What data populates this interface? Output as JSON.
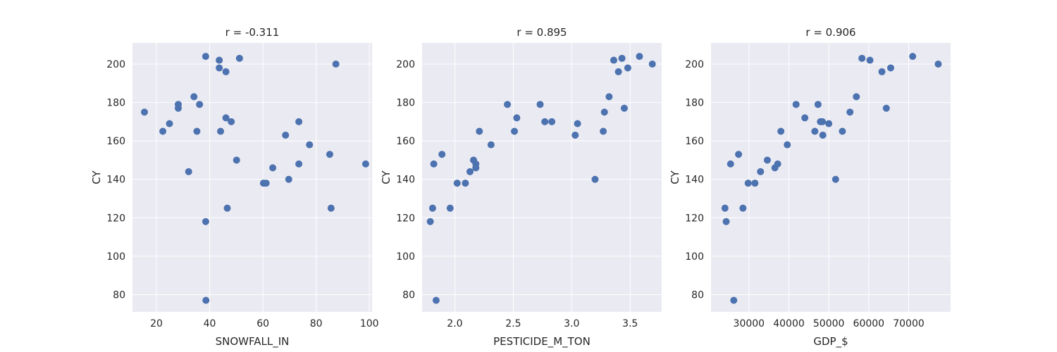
{
  "chart_data": [
    {
      "type": "scatter",
      "title": "r = -0.311",
      "xlabel": "SNOWFALL_IN",
      "ylabel": "CY",
      "xlim": [
        11,
        101
      ],
      "ylim": [
        71,
        211
      ],
      "xticks": [
        20,
        40,
        60,
        80,
        100
      ],
      "yticks": [
        80,
        100,
        120,
        140,
        160,
        180,
        200
      ],
      "grid": true,
      "color": "#4c72b0",
      "points": [
        {
          "x": 15.5,
          "y": 175
        },
        {
          "x": 22.4,
          "y": 165
        },
        {
          "x": 24.9,
          "y": 169
        },
        {
          "x": 28.2,
          "y": 179
        },
        {
          "x": 28.2,
          "y": 177
        },
        {
          "x": 32.1,
          "y": 144
        },
        {
          "x": 34.1,
          "y": 183
        },
        {
          "x": 35.2,
          "y": 165
        },
        {
          "x": 36.2,
          "y": 179
        },
        {
          "x": 38.5,
          "y": 204
        },
        {
          "x": 38.5,
          "y": 118
        },
        {
          "x": 38.6,
          "y": 77
        },
        {
          "x": 43.6,
          "y": 202
        },
        {
          "x": 43.6,
          "y": 198
        },
        {
          "x": 44.1,
          "y": 165
        },
        {
          "x": 46.1,
          "y": 196
        },
        {
          "x": 46.1,
          "y": 172
        },
        {
          "x": 46.6,
          "y": 125
        },
        {
          "x": 48.1,
          "y": 170
        },
        {
          "x": 50.1,
          "y": 150
        },
        {
          "x": 51.2,
          "y": 203
        },
        {
          "x": 60.2,
          "y": 138
        },
        {
          "x": 61.2,
          "y": 138
        },
        {
          "x": 63.7,
          "y": 146
        },
        {
          "x": 68.5,
          "y": 163
        },
        {
          "x": 69.7,
          "y": 140
        },
        {
          "x": 73.5,
          "y": 170
        },
        {
          "x": 73.5,
          "y": 148
        },
        {
          "x": 77.5,
          "y": 158
        },
        {
          "x": 85.1,
          "y": 153
        },
        {
          "x": 85.6,
          "y": 125
        },
        {
          "x": 87.4,
          "y": 200
        },
        {
          "x": 98.6,
          "y": 148
        }
      ]
    },
    {
      "type": "scatter",
      "title": "r = 0.895",
      "xlabel": "PESTICIDE_M_TON",
      "ylabel": "CY",
      "xlim": [
        1.72,
        3.77
      ],
      "ylim": [
        71,
        211
      ],
      "xticks": [
        2.0,
        2.5,
        3.0,
        3.5
      ],
      "xtick_labels": [
        "2.0",
        "2.5",
        "3.0",
        "3.5"
      ],
      "yticks": [
        80,
        100,
        120,
        140,
        160,
        180,
        200
      ],
      "grid": true,
      "color": "#4c72b0",
      "points": [
        {
          "x": 1.79,
          "y": 118
        },
        {
          "x": 1.81,
          "y": 125
        },
        {
          "x": 1.82,
          "y": 148
        },
        {
          "x": 1.84,
          "y": 77
        },
        {
          "x": 1.89,
          "y": 153
        },
        {
          "x": 1.96,
          "y": 125
        },
        {
          "x": 2.02,
          "y": 138
        },
        {
          "x": 2.09,
          "y": 138
        },
        {
          "x": 2.13,
          "y": 144
        },
        {
          "x": 2.16,
          "y": 150
        },
        {
          "x": 2.18,
          "y": 148
        },
        {
          "x": 2.18,
          "y": 146
        },
        {
          "x": 2.21,
          "y": 165
        },
        {
          "x": 2.31,
          "y": 158
        },
        {
          "x": 2.45,
          "y": 179
        },
        {
          "x": 2.51,
          "y": 165
        },
        {
          "x": 2.53,
          "y": 172
        },
        {
          "x": 2.73,
          "y": 179
        },
        {
          "x": 2.77,
          "y": 170
        },
        {
          "x": 2.83,
          "y": 170
        },
        {
          "x": 3.03,
          "y": 163
        },
        {
          "x": 3.05,
          "y": 169
        },
        {
          "x": 3.2,
          "y": 140
        },
        {
          "x": 3.27,
          "y": 165
        },
        {
          "x": 3.28,
          "y": 175
        },
        {
          "x": 3.32,
          "y": 183
        },
        {
          "x": 3.36,
          "y": 202
        },
        {
          "x": 3.4,
          "y": 196
        },
        {
          "x": 3.43,
          "y": 203
        },
        {
          "x": 3.45,
          "y": 177
        },
        {
          "x": 3.48,
          "y": 198
        },
        {
          "x": 3.58,
          "y": 204
        },
        {
          "x": 3.69,
          "y": 200
        }
      ]
    },
    {
      "type": "scatter",
      "title": "r = 0.906",
      "xlabel": "GDP_$",
      "ylabel": "CY",
      "xlim": [
        20500,
        80500
      ],
      "ylim": [
        71,
        211
      ],
      "xticks": [
        30000,
        40000,
        50000,
        60000,
        70000
      ],
      "yticks": [
        80,
        100,
        120,
        140,
        160,
        180,
        200
      ],
      "grid": true,
      "color": "#4c72b0",
      "points": [
        {
          "x": 24000,
          "y": 125
        },
        {
          "x": 24300,
          "y": 118
        },
        {
          "x": 25400,
          "y": 148
        },
        {
          "x": 26200,
          "y": 77
        },
        {
          "x": 27400,
          "y": 153
        },
        {
          "x": 28500,
          "y": 125
        },
        {
          "x": 29800,
          "y": 138
        },
        {
          "x": 31500,
          "y": 138
        },
        {
          "x": 32900,
          "y": 144
        },
        {
          "x": 34600,
          "y": 150
        },
        {
          "x": 36500,
          "y": 146
        },
        {
          "x": 37200,
          "y": 148
        },
        {
          "x": 38000,
          "y": 165
        },
        {
          "x": 39600,
          "y": 158
        },
        {
          "x": 41800,
          "y": 179
        },
        {
          "x": 44000,
          "y": 172
        },
        {
          "x": 46500,
          "y": 165
        },
        {
          "x": 47300,
          "y": 179
        },
        {
          "x": 47900,
          "y": 170
        },
        {
          "x": 48400,
          "y": 170
        },
        {
          "x": 48500,
          "y": 163
        },
        {
          "x": 50000,
          "y": 169
        },
        {
          "x": 51700,
          "y": 140
        },
        {
          "x": 53400,
          "y": 165
        },
        {
          "x": 55300,
          "y": 175
        },
        {
          "x": 56900,
          "y": 183
        },
        {
          "x": 58300,
          "y": 203
        },
        {
          "x": 60300,
          "y": 202
        },
        {
          "x": 63300,
          "y": 196
        },
        {
          "x": 64400,
          "y": 177
        },
        {
          "x": 65500,
          "y": 198
        },
        {
          "x": 71000,
          "y": 204
        },
        {
          "x": 77400,
          "y": 200
        }
      ]
    }
  ]
}
